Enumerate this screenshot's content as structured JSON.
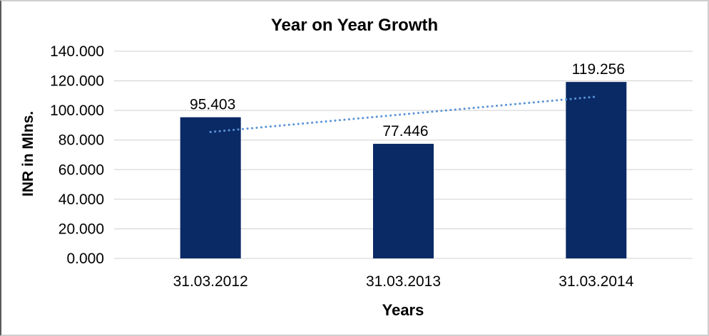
{
  "chart_data": {
    "type": "bar",
    "title": "Year on Year Growth",
    "categories": [
      "31.03.2012",
      "31.03.2013",
      "31.03.2014"
    ],
    "values": [
      95.403,
      77.446,
      119.256
    ],
    "data_labels": [
      "95.403",
      "77.446",
      "119.256"
    ],
    "xlabel": "Years",
    "ylabel": "INR in Mlns.",
    "ylim": [
      0,
      140
    ],
    "ytick_step": 20,
    "ytick_labels": [
      "0.000",
      "20.000",
      "40.000",
      "60.000",
      "80.000",
      "100.000",
      "120.000",
      "140.000"
    ],
    "grid": true,
    "legend": "none",
    "trendline": {
      "type": "linear",
      "style": "dotted"
    },
    "colors": {
      "bar": "#0A2A66",
      "gridline": "#D9D9D9",
      "trendline": "#5B94D6",
      "text": "#000000"
    }
  }
}
